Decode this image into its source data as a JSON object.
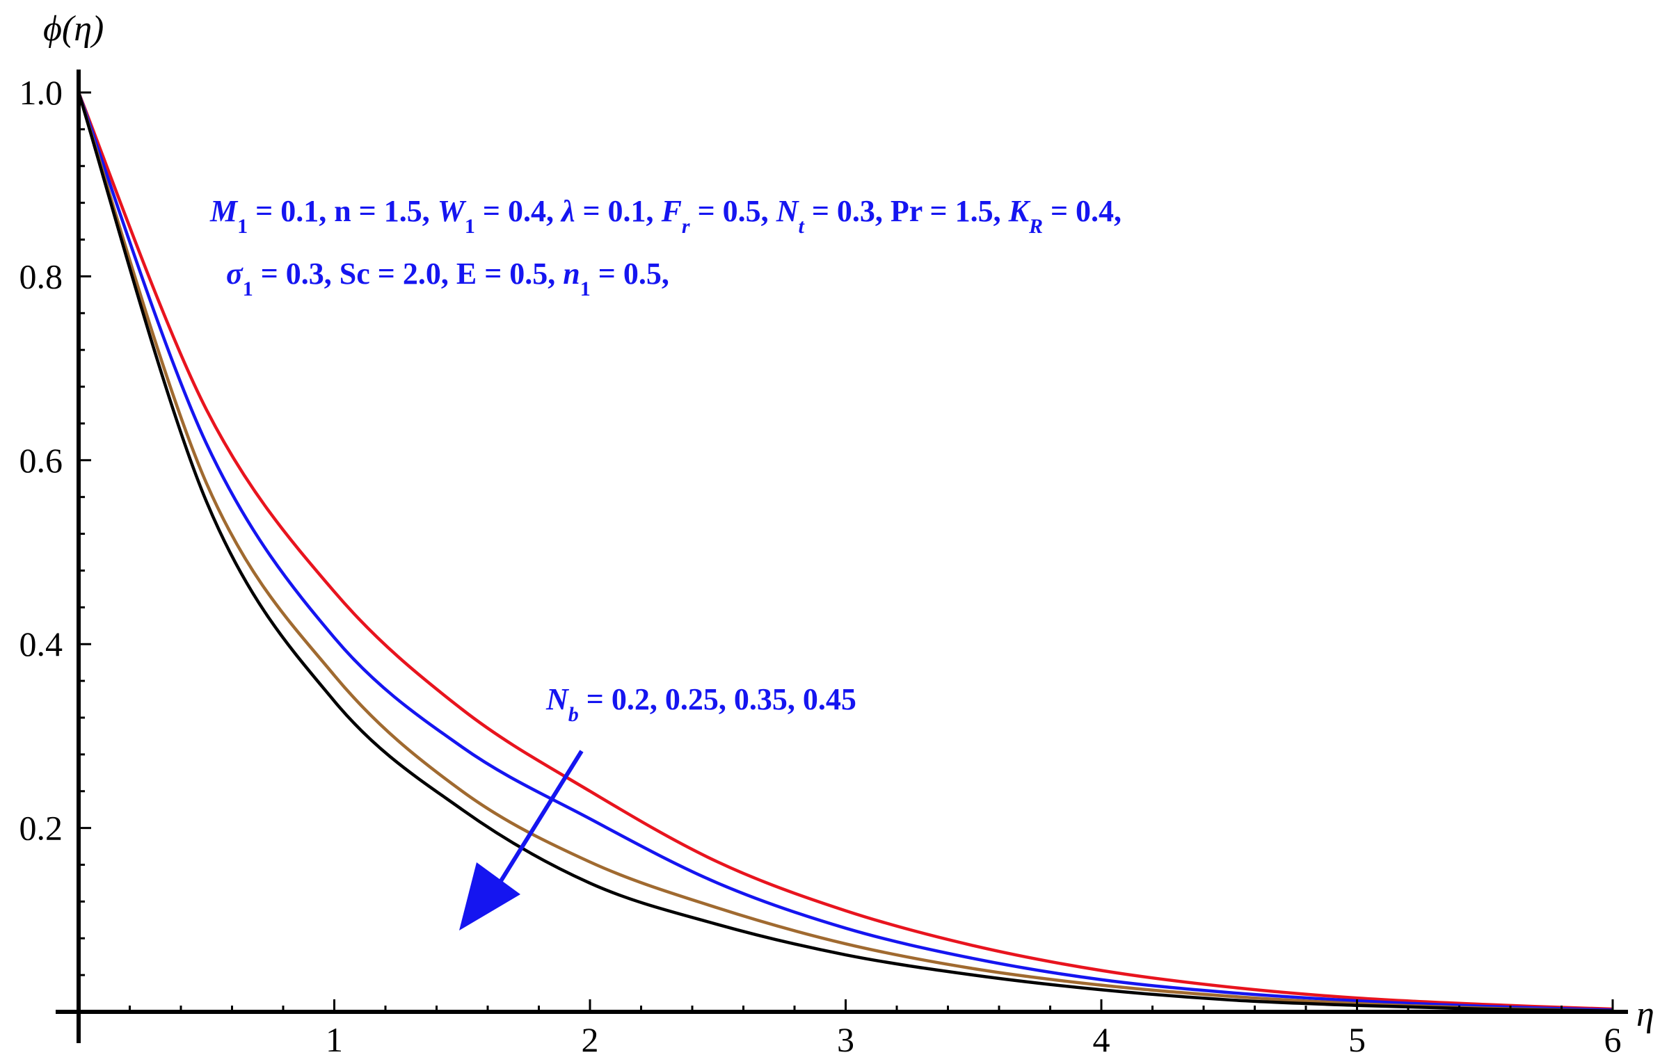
{
  "chart_data": {
    "type": "line",
    "title": "",
    "xlabel": "η",
    "ylabel": "ϕ(η)",
    "xlim": [
      0,
      6.1
    ],
    "ylim": [
      0,
      1.0
    ],
    "x_ticks": [
      "1",
      "2",
      "3",
      "4",
      "5",
      "6"
    ],
    "y_ticks": [
      "0.2",
      "0.4",
      "0.6",
      "0.8",
      "1.0"
    ],
    "grid": false,
    "legend": "none",
    "series": [
      {
        "color": "#e8141e",
        "x": [
          0,
          0.5,
          1,
          1.5,
          2,
          2.5,
          3,
          3.5,
          4,
          4.5,
          5,
          5.5,
          6
        ],
        "values": [
          1.0,
          0.655,
          0.457,
          0.329,
          0.24,
          0.163,
          0.11,
          0.072,
          0.045,
          0.027,
          0.015,
          0.008,
          0.003
        ]
      },
      {
        "color": "#1515f0",
        "x": [
          0,
          0.5,
          1,
          1.5,
          2,
          2.5,
          3,
          3.5,
          4,
          4.5,
          5,
          5.5,
          6
        ],
        "values": [
          1.0,
          0.618,
          0.407,
          0.288,
          0.21,
          0.14,
          0.091,
          0.058,
          0.035,
          0.021,
          0.012,
          0.006,
          0.002
        ]
      },
      {
        "color": "#a06a30",
        "x": [
          0,
          0.5,
          1,
          1.5,
          2,
          2.5,
          3,
          3.5,
          4,
          4.5,
          5,
          5.5,
          6
        ],
        "values": [
          1.0,
          0.575,
          0.366,
          0.24,
          0.163,
          0.113,
          0.074,
          0.047,
          0.029,
          0.017,
          0.009,
          0.004,
          0.001
        ]
      },
      {
        "color": "#000000",
        "x": [
          0,
          0.5,
          1,
          1.5,
          2,
          2.5,
          3,
          3.5,
          4,
          4.5,
          5,
          5.5,
          6
        ],
        "values": [
          1.0,
          0.555,
          0.338,
          0.22,
          0.14,
          0.095,
          0.062,
          0.04,
          0.024,
          0.013,
          0.007,
          0.003,
          0.001
        ]
      }
    ],
    "annotations": {
      "params_line1": [
        {
          "t": "M",
          "it": true
        },
        {
          "t": "1",
          "sub": true
        },
        {
          "t": " =  0.1, n = 1.5, "
        },
        {
          "t": "W",
          "it": true
        },
        {
          "t": "1",
          "sub": true
        },
        {
          "t": " =  0.4,  "
        },
        {
          "t": "λ",
          "it": true
        },
        {
          "t": " = 0.1, "
        },
        {
          "t": "F",
          "it": true
        },
        {
          "t": "r",
          "sub": true,
          "it": true
        },
        {
          "t": " = 0.5, "
        },
        {
          "t": "N",
          "it": true
        },
        {
          "t": "t",
          "sub": true,
          "it": true
        },
        {
          "t": " = 0.3, Pr = 1.5, "
        },
        {
          "t": "K",
          "it": true
        },
        {
          "t": "R",
          "sub": true,
          "it": true
        },
        {
          "t": " = 0.4,"
        }
      ],
      "params_line2": [
        {
          "t": "σ",
          "it": true
        },
        {
          "t": "1",
          "sub": true
        },
        {
          "t": " = 0.3,  Sc = 2.0,  E = 0.5, "
        },
        {
          "t": "n",
          "it": true
        },
        {
          "t": "1",
          "sub": true
        },
        {
          "t": " = 0.5,"
        }
      ],
      "nb_label": [
        {
          "t": "N",
          "it": true
        },
        {
          "t": "b",
          "sub": true,
          "it": true
        },
        {
          "t": " = 0.2, 0.25, 0.35, 0.45"
        }
      ],
      "arrow_color": "#1515f0"
    }
  }
}
